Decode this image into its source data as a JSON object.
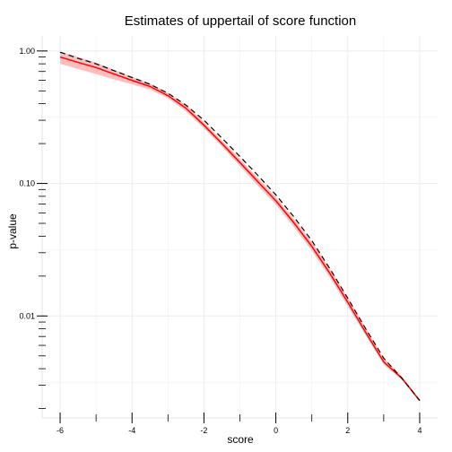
{
  "colors": {
    "estimate_line": "#ff0000",
    "confidence_band": "#ffb3b3",
    "reference_line": "#000000",
    "grid": "#ececec",
    "axis": "#000000"
  },
  "chart_data": {
    "type": "line",
    "title": "Estimates of uppertail of score function",
    "xlabel": "score",
    "ylabel": "p-value",
    "xlim": [
      -6.5,
      4.5
    ],
    "ylim": [
      0.0017,
      1.3
    ],
    "yscale": "log",
    "grid": true,
    "legend": "none",
    "x_ticks": [
      -6,
      -4,
      -2,
      0,
      2,
      4
    ],
    "x_tick_labels": [
      "-6",
      "-4",
      "-2",
      "0",
      "2",
      "4"
    ],
    "y_ticks": [
      0.01,
      0.1,
      1.0
    ],
    "y_tick_labels": [
      "0.01",
      "0.10",
      "1.00"
    ],
    "series": [
      {
        "style": "band",
        "x": [
          -6.0,
          -5.5,
          -5.0,
          -4.5,
          -4.0,
          -3.5,
          -3.0,
          -2.5,
          -2.0,
          -1.5,
          -1.0,
          -0.5,
          0.0,
          0.5,
          1.0,
          1.5,
          2.0,
          2.5,
          3.0,
          3.5,
          4.0
        ],
        "lower": [
          0.8,
          0.73,
          0.67,
          0.61,
          0.56,
          0.51,
          0.44,
          0.35,
          0.26,
          0.19,
          0.135,
          0.096,
          0.069,
          0.047,
          0.031,
          0.0195,
          0.0118,
          0.0071,
          0.0043,
          0.0033,
          0.0023
        ],
        "upper": [
          0.99,
          0.9,
          0.82,
          0.72,
          0.64,
          0.57,
          0.48,
          0.39,
          0.29,
          0.21,
          0.153,
          0.11,
          0.079,
          0.054,
          0.036,
          0.0226,
          0.0136,
          0.008,
          0.0048,
          0.0035,
          0.0023
        ]
      },
      {
        "style": "solid",
        "x": [
          -6.0,
          -5.5,
          -5.0,
          -4.5,
          -4.0,
          -3.5,
          -3.0,
          -2.5,
          -2.0,
          -1.5,
          -1.0,
          -0.5,
          0.0,
          0.5,
          1.0,
          1.5,
          2.0,
          2.5,
          3.0,
          3.5,
          4.0
        ],
        "y": [
          0.9,
          0.82,
          0.75,
          0.67,
          0.6,
          0.54,
          0.46,
          0.37,
          0.275,
          0.2,
          0.144,
          0.103,
          0.074,
          0.0505,
          0.0335,
          0.021,
          0.0127,
          0.0075,
          0.0045,
          0.0034,
          0.0023
        ]
      },
      {
        "style": "dashed",
        "x": [
          -6.0,
          -5.5,
          -5.0,
          -4.5,
          -4.0,
          -3.5,
          -3.0,
          -2.5,
          -2.0,
          -1.5,
          -1.0,
          -0.5,
          0.0,
          0.5,
          1.0,
          1.5,
          2.0,
          2.5,
          3.0,
          3.5,
          4.0
        ],
        "y": [
          0.98,
          0.88,
          0.8,
          0.71,
          0.63,
          0.56,
          0.48,
          0.39,
          0.3,
          0.22,
          0.16,
          0.115,
          0.082,
          0.056,
          0.037,
          0.0228,
          0.0136,
          0.008,
          0.0048,
          0.0034,
          0.0023
        ]
      }
    ]
  }
}
